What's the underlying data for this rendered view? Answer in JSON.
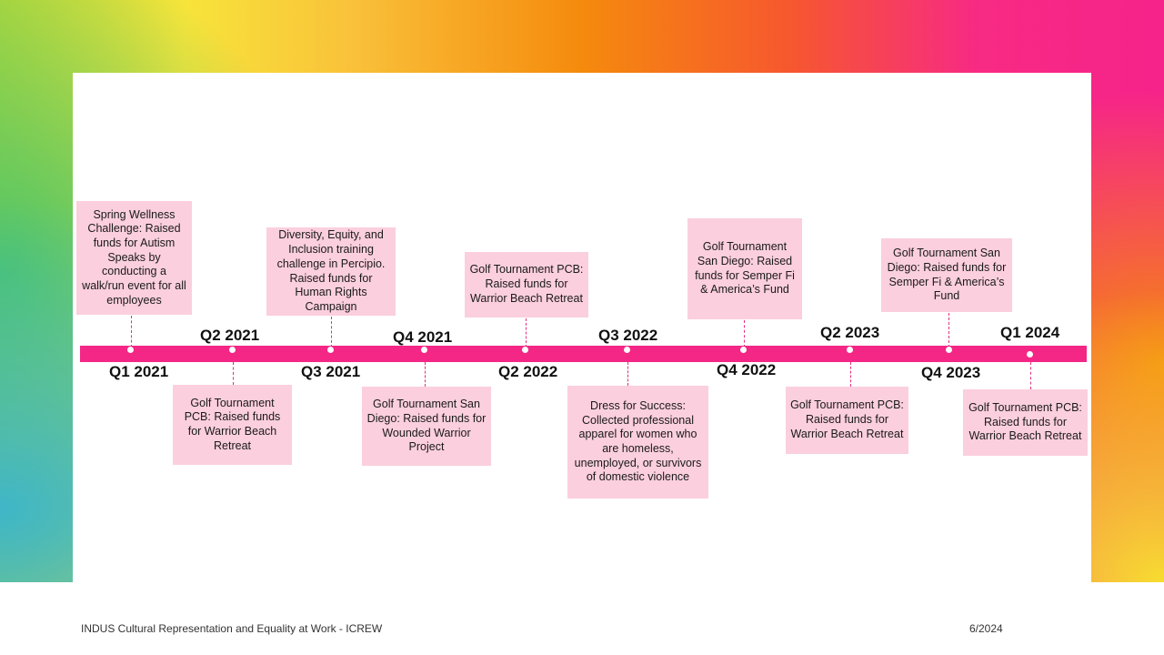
{
  "timeline": {
    "events": [
      {
        "quarter": "Q1 2021",
        "text": "Spring Wellness Challenge: Raised funds for Autism Speaks by conducting a walk/run event for all employees"
      },
      {
        "quarter": "Q2 2021",
        "text": "Golf Tournament PCB: Raised funds for Warrior Beach Retreat"
      },
      {
        "quarter": "Q3 2021",
        "text": "Diversity, Equity, and Inclusion training challenge in Percipio. Raised funds for Human Rights Campaign"
      },
      {
        "quarter": "Q4 2021",
        "text": "Golf Tournament San Diego: Raised funds for Wounded Warrior Project"
      },
      {
        "quarter": "Q2 2022",
        "text": "Golf Tournament PCB: Raised funds for Warrior Beach Retreat"
      },
      {
        "quarter": "Q3 2022",
        "text": "Dress for Success: Collected professional apparel for women who are homeless, unemployed, or survivors of domestic violence"
      },
      {
        "quarter": "Q4 2022",
        "text": "Golf Tournament San Diego: Raised funds for Semper Fi & America’s Fund"
      },
      {
        "quarter": "Q2 2023",
        "text": "Golf Tournament PCB: Raised funds for Warrior Beach Retreat"
      },
      {
        "quarter": "Q4 2023",
        "text": "Golf Tournament San Diego: Raised funds for Semper Fi & America’s Fund"
      },
      {
        "quarter": "Q1 2024",
        "text": "Golf Tournament PCB: Raised funds for Warrior Beach Retreat"
      }
    ]
  },
  "footer": {
    "org": "INDUS Cultural Representation and Equality at Work - ICREW",
    "date": "6/2024"
  },
  "colors": {
    "bar": "#f42686",
    "box": "#fbcfdd"
  }
}
